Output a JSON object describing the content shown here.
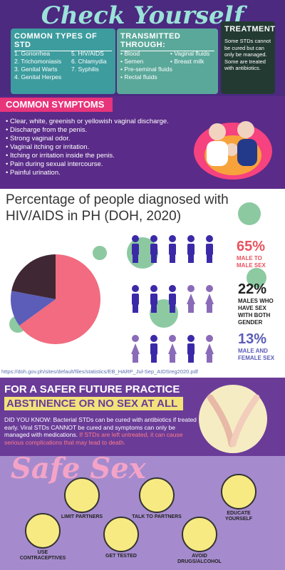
{
  "header": {
    "title": "Check Yourself"
  },
  "std_types": {
    "heading": "COMMON TYPES OF STD",
    "col1": [
      "1. Gonorrhea",
      "2. Trichomoniasis",
      "3. Genital Warts",
      "4. Genital Herpes"
    ],
    "col2": [
      "5. HIV/AIDS",
      "6. Chlamydia",
      "7. Syphilis"
    ]
  },
  "transmission": {
    "heading": "TRANSMITTED THROUGH:",
    "col1": [
      "Blood",
      "Semen",
      "Pre-seminal fluids",
      "Rectal fluids"
    ],
    "col2": [
      "Vaginal fluids",
      "Breast milk"
    ]
  },
  "treatment": {
    "heading": "TREATMENT",
    "text": "Some STDs cannot be cured but can only be managed. Some are treated with antibiotics."
  },
  "symptoms": {
    "heading": "COMMON SYMPTOMS",
    "items": [
      "Clear, white, greenish or yellowish vaginal discharge.",
      "Discharge from the penis.",
      "Strong vaginal odor.",
      "Vaginal itching or irritation.",
      "Itching or irritation inside the penis.",
      "Pain during sexual intercourse.",
      "Painful urination."
    ]
  },
  "chart_data": {
    "type": "pie",
    "title": "Percentage of people diagnosed with HIV/AIDS in PH (DOH, 2020)",
    "categories": [
      "MALE TO MALE SEX",
      "MALES WHO HAVE SEX WITH BOTH GENDER",
      "MALE AND FEMALE SEX"
    ],
    "values": [
      65,
      22,
      13
    ],
    "value_labels": [
      "65%",
      "22%",
      "13%"
    ],
    "colors": [
      "#f26b80",
      "#3f2733",
      "#5b5db8"
    ],
    "label_colors": [
      "#e8525f",
      "#222222",
      "#5b5db8"
    ],
    "source": "https://doh.gov.ph/sites/default/files/statistics/EB_HARP_Jul-Sep_AIDSreg2020.pdf"
  },
  "safer": {
    "line1": "FOR A SAFER FUTURE PRACTICE",
    "line2": "ABSTINENCE OR NO SEX AT ALL",
    "text": "DID YOU KNOW: Bacterial STDs can be cured with antibiotics if treated early. Viral STDs CANNOT be cured and symptoms can only be managed with medications.",
    "warning": "If STDs are left untreated, it can cause serious complications that may lead to death."
  },
  "safe_sex": {
    "title": "Safe Sex",
    "tips": [
      "USE CONTRACEPTIVES",
      "LIMIT PARTNERS",
      "GET TESTED",
      "TALK TO PARTNERS",
      "AVOID DRUGS/ALCOHOL",
      "EDUCATE YOURSELF"
    ]
  }
}
